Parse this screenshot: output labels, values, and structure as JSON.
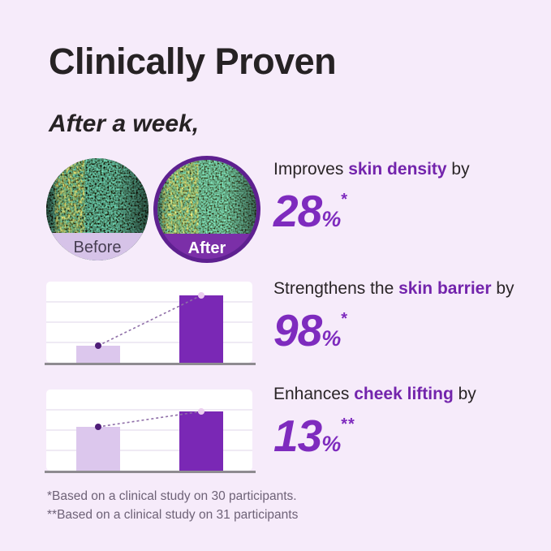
{
  "page": {
    "title": "Clinically Proven",
    "subtitle": "After a week,"
  },
  "comparison": {
    "before_label": "Before",
    "after_label": "After"
  },
  "stats": [
    {
      "prefix": "Improves ",
      "highlight": "skin density",
      "suffix": " by",
      "value": "28",
      "unit": "%",
      "footnote_mark": "*"
    },
    {
      "prefix": "Strengthens the ",
      "highlight": "skin barrier",
      "suffix": " by",
      "value": "98",
      "unit": "%",
      "footnote_mark": "*"
    },
    {
      "prefix": "Enhances ",
      "highlight": "cheek lifting",
      "suffix": " by",
      "value": "13",
      "unit": "%",
      "footnote_mark": "**"
    }
  ],
  "footnotes": [
    "*Based on a clinical study on 30 participants.",
    "**Based on a clinical study on 31 participants"
  ],
  "chart_data": [
    {
      "type": "bar",
      "categories": [
        "before",
        "after"
      ],
      "values": [
        21,
        83
      ],
      "value_unit": "relative bar height, % of panel (chart has no axis tick labels)",
      "title": "",
      "xlabel": "",
      "ylabel": "",
      "ylim": [
        0,
        100
      ],
      "grid": true,
      "gridlines": 3,
      "annotation": "dashed rising trend line connects bar tops; dark dot on first bar, light dot on second",
      "associated_stat": "Strengthens the skin barrier by 98%*"
    },
    {
      "type": "bar",
      "categories": [
        "before",
        "after"
      ],
      "values": [
        54,
        73
      ],
      "value_unit": "relative bar height, % of panel (chart has no axis tick labels)",
      "title": "",
      "xlabel": "",
      "ylabel": "",
      "ylim": [
        0,
        100
      ],
      "grid": true,
      "gridlines": 3,
      "annotation": "dashed rising trend line connects bar tops; dark dot on first bar, light dot on second",
      "associated_stat": "Enhances cheek lifting by 13%**"
    }
  ],
  "colors": {
    "background": "#F6EBFA",
    "heading_text": "#262224",
    "body_text": "#2A2527",
    "highlight_purple": "#7324AC",
    "number_purple": "#7E2BBE",
    "bar_before": "#DCC7ED",
    "bar_after": "#7A28B5",
    "before_band": "#D6C3E8",
    "before_band_text": "#473E52",
    "after_band": "#7B2FA8",
    "after_ring": "#5E2090",
    "after_band_text": "#FFFFFF",
    "chart_panel": "#FFFFFF",
    "chart_grid": "#EAE3F0",
    "chart_baseline": "#8E8B90",
    "trend_line": "#8F6FA8",
    "trend_dot_start": "#4F1D78",
    "trend_dot_end": "#EBCDEF",
    "footnote_text": "#6E6277"
  }
}
